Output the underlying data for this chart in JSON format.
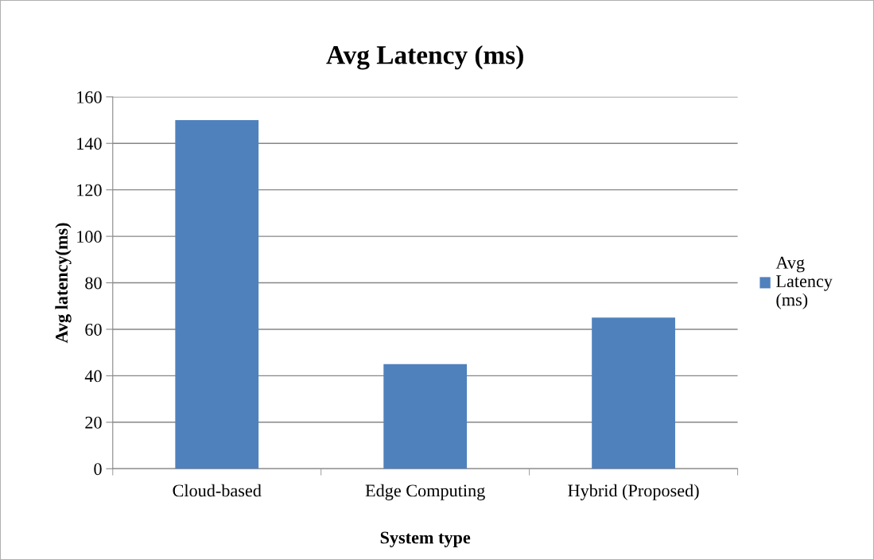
{
  "chart_data": {
    "type": "bar",
    "title": "Avg Latency (ms)",
    "xlabel": "System type",
    "ylabel": "Avg latency(ms)",
    "categories": [
      "Cloud-based",
      "Edge Computing",
      "Hybrid (Proposed)"
    ],
    "series": [
      {
        "name": "Avg Latency (ms)",
        "color": "#4f81bd",
        "values": [
          150,
          45,
          65
        ]
      }
    ],
    "ylim": [
      0,
      160
    ],
    "yticks": [
      0,
      20,
      40,
      60,
      80,
      100,
      120,
      140,
      160
    ],
    "grid": "y",
    "legend": "right"
  }
}
